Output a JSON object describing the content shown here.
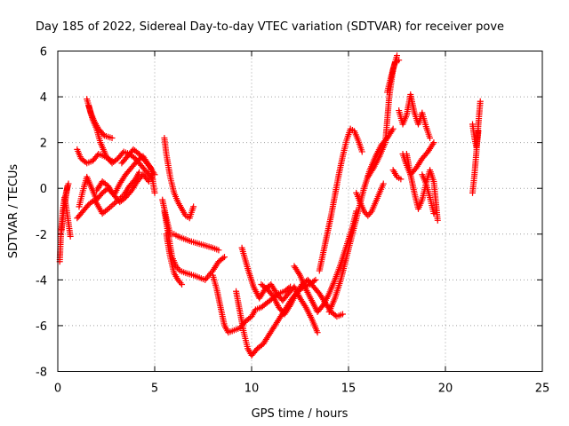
{
  "chart_data": {
    "type": "scatter",
    "title": "Day 185 of 2022, Sidereal Day-to-day VTEC variation (SDTVAR) for receiver pove",
    "xlabel": "GPS time / hours",
    "ylabel": "SDTVAR / TECUs",
    "xlim": [
      0,
      25
    ],
    "ylim": [
      -8,
      6
    ],
    "xticks": [
      0,
      5,
      10,
      15,
      20,
      25
    ],
    "yticks": [
      -8,
      -6,
      -4,
      -2,
      0,
      2,
      4,
      6
    ],
    "xtick_labels": [
      "0",
      "5",
      "10",
      "15",
      "20",
      "25"
    ],
    "ytick_labels": [
      "-8",
      "-6",
      "-4",
      "-2",
      "0",
      "2",
      "4",
      "6"
    ],
    "grid": true,
    "marker": "+",
    "color": "#ff0000",
    "series": [
      {
        "x": [
          0.1,
          0.15,
          0.25,
          0.35,
          0.45,
          0.55,
          0.65
        ],
        "y": [
          -3.2,
          -2.2,
          -1.0,
          -0.4,
          -0.9,
          -1.5,
          -2.1
        ]
      },
      {
        "x": [
          0.2,
          0.3,
          0.4,
          0.5
        ],
        "y": [
          -1.8,
          -1.0,
          -0.5,
          0.1
        ]
      },
      {
        "x": [
          0.35,
          0.45,
          0.55
        ],
        "y": [
          -0.5,
          -0.1,
          0.2
        ]
      },
      {
        "x": [
          1.0,
          1.2,
          1.5,
          1.8,
          2.1,
          2.4,
          2.6,
          2.8
        ],
        "y": [
          1.7,
          1.3,
          1.1,
          1.2,
          1.5,
          1.4,
          1.3,
          1.2
        ]
      },
      {
        "x": [
          1.0,
          1.3,
          1.6,
          1.9,
          2.1,
          2.3,
          2.6,
          3.0,
          3.4,
          3.7,
          4.0,
          4.2
        ],
        "y": [
          -1.3,
          -1.0,
          -0.7,
          -0.5,
          -0.8,
          -1.1,
          -0.9,
          -0.6,
          -0.3,
          0.1,
          0.4,
          0.7
        ]
      },
      {
        "x": [
          1.1,
          1.3,
          1.5,
          1.8,
          2.0,
          2.3,
          2.6,
          2.9,
          3.2,
          3.5,
          3.8,
          4.1,
          4.4,
          4.7
        ],
        "y": [
          -0.8,
          -0.1,
          0.5,
          -0.1,
          -0.5,
          -0.2,
          0.0,
          -0.3,
          -0.6,
          -0.4,
          -0.1,
          0.3,
          0.6,
          0.3
        ]
      },
      {
        "x": [
          1.5,
          1.7,
          1.9,
          2.1,
          2.4,
          2.8
        ],
        "y": [
          3.9,
          3.3,
          2.9,
          2.6,
          2.3,
          2.2
        ]
      },
      {
        "x": [
          1.6,
          1.8,
          2.0,
          2.2,
          2.5,
          2.8,
          3.1,
          3.4,
          3.7,
          4.0,
          4.3,
          4.6,
          4.9
        ],
        "y": [
          3.6,
          3.0,
          2.6,
          2.0,
          1.4,
          1.1,
          1.3,
          1.6,
          1.5,
          1.3,
          1.0,
          0.7,
          0.4
        ]
      },
      {
        "x": [
          2.0,
          2.3,
          2.6,
          2.9,
          3.2,
          3.5,
          3.8,
          4.1,
          4.4,
          4.7,
          5.0
        ],
        "y": [
          -0.1,
          0.3,
          0.1,
          -0.3,
          0.2,
          0.6,
          0.9,
          1.2,
          1.4,
          1.0,
          0.6
        ]
      },
      {
        "x": [
          3.3,
          3.6,
          3.9,
          4.2,
          4.5,
          4.8,
          5.0
        ],
        "y": [
          1.1,
          1.4,
          1.7,
          1.5,
          1.2,
          0.9,
          -0.2
        ]
      },
      {
        "x": [
          5.5,
          5.6,
          5.8,
          6.0,
          6.2,
          6.4,
          6.6,
          6.8,
          7.0
        ],
        "y": [
          2.2,
          1.5,
          0.5,
          -0.2,
          -0.6,
          -0.9,
          -1.2,
          -1.3,
          -0.8
        ]
      },
      {
        "x": [
          5.4,
          5.6,
          5.8,
          6.0,
          6.2,
          6.5,
          6.8,
          7.2,
          7.6,
          8.0,
          8.3
        ],
        "y": [
          -0.5,
          -1.3,
          -2.0,
          -2.0,
          -2.1,
          -2.2,
          -2.3,
          -2.4,
          -2.5,
          -2.6,
          -2.7
        ]
      },
      {
        "x": [
          5.5,
          5.7,
          5.9,
          6.1,
          6.3,
          6.6,
          7.0,
          7.3,
          7.6,
          8.0,
          8.3,
          8.6
        ],
        "y": [
          -1.0,
          -2.0,
          -3.0,
          -3.4,
          -3.6,
          -3.7,
          -3.8,
          -3.9,
          -4.0,
          -3.6,
          -3.2,
          -3.0
        ]
      },
      {
        "x": [
          5.6,
          5.8,
          6.0,
          6.2,
          6.4
        ],
        "y": [
          -2.0,
          -3.0,
          -3.7,
          -4.0,
          -4.2
        ]
      },
      {
        "x": [
          8.0,
          8.2,
          8.4,
          8.6,
          8.8,
          9.1,
          9.4,
          9.7,
          10.0,
          10.2,
          10.5,
          10.8,
          11.1,
          11.4,
          11.7,
          12.0
        ],
        "y": [
          -3.8,
          -4.4,
          -5.2,
          -6.0,
          -6.3,
          -6.2,
          -6.1,
          -5.8,
          -5.6,
          -5.3,
          -5.2,
          -5.0,
          -4.8,
          -4.6,
          -4.5,
          -4.3
        ]
      },
      {
        "x": [
          9.2,
          9.4,
          9.6,
          9.8,
          10.0,
          10.3,
          10.6,
          10.9,
          11.2,
          11.5,
          11.8,
          12.1,
          12.4,
          12.7,
          13.0,
          13.3
        ],
        "y": [
          -4.5,
          -5.4,
          -6.3,
          -7.0,
          -7.3,
          -7.0,
          -6.8,
          -6.4,
          -6.0,
          -5.6,
          -5.2,
          -4.8,
          -4.5,
          -4.3,
          -4.2,
          -4.0
        ]
      },
      {
        "x": [
          9.5,
          9.8,
          10.1,
          10.4,
          10.7,
          11.0,
          11.3,
          11.6,
          11.9,
          12.2,
          12.5,
          12.8,
          13.1,
          13.4
        ],
        "y": [
          -2.6,
          -3.5,
          -4.3,
          -4.8,
          -4.4,
          -4.2,
          -4.6,
          -4.9,
          -4.6,
          -4.3,
          -4.8,
          -5.2,
          -5.7,
          -6.3
        ]
      },
      {
        "x": [
          10.5,
          10.8,
          11.1,
          11.4,
          11.7,
          12.0,
          12.3,
          12.6,
          12.9,
          13.2,
          13.5,
          13.8,
          14.1,
          14.4,
          14.7
        ],
        "y": [
          -4.2,
          -4.4,
          -4.7,
          -5.2,
          -5.5,
          -5.1,
          -4.6,
          -4.2,
          -4.0,
          -4.3,
          -4.6,
          -5.0,
          -5.4,
          -5.6,
          -5.5
        ]
      },
      {
        "x": [
          12.2,
          12.5,
          12.8,
          13.1,
          13.4,
          13.7,
          14.0,
          14.3,
          14.6,
          14.9,
          15.2,
          15.4
        ],
        "y": [
          -3.4,
          -3.8,
          -4.4,
          -4.9,
          -5.4,
          -5.1,
          -4.6,
          -4.0,
          -3.3,
          -2.5,
          -1.7,
          -1.0
        ]
      },
      {
        "x": [
          13.5,
          13.7,
          13.9,
          14.1,
          14.3,
          14.5,
          14.7,
          14.9,
          15.1,
          15.3,
          15.5,
          15.7
        ],
        "y": [
          -3.6,
          -2.8,
          -2.0,
          -1.2,
          -0.3,
          0.6,
          1.4,
          2.1,
          2.6,
          2.5,
          2.1,
          1.6
        ]
      },
      {
        "x": [
          14.0,
          14.3,
          14.6,
          14.9,
          15.2,
          15.5,
          15.8,
          16.1,
          16.4,
          16.7,
          17.0,
          17.3
        ],
        "y": [
          -5.4,
          -4.8,
          -4.0,
          -3.0,
          -2.0,
          -1.0,
          0.0,
          0.8,
          1.4,
          1.9,
          2.2,
          2.6
        ]
      },
      {
        "x": [
          15.4,
          15.6,
          15.8,
          16.0,
          16.2,
          16.4,
          16.6,
          16.8
        ],
        "y": [
          -0.2,
          -0.6,
          -1.0,
          -1.2,
          -1.0,
          -0.6,
          -0.2,
          0.2
        ]
      },
      {
        "x": [
          16.0,
          16.3,
          16.6,
          16.9,
          17.1,
          17.3,
          17.5
        ],
        "y": [
          0.5,
          0.9,
          1.4,
          2.0,
          4.0,
          5.2,
          5.8
        ]
      },
      {
        "x": [
          17.0,
          17.2,
          17.4,
          17.6
        ],
        "y": [
          4.2,
          4.9,
          5.5,
          5.6
        ]
      },
      {
        "x": [
          17.3,
          17.5,
          17.7
        ],
        "y": [
          0.8,
          0.5,
          0.4
        ]
      },
      {
        "x": [
          17.6,
          17.8,
          18.0,
          18.2,
          18.4,
          18.6,
          18.8,
          19.0,
          19.2
        ],
        "y": [
          3.4,
          2.8,
          3.2,
          4.1,
          3.3,
          2.8,
          3.3,
          2.7,
          2.2
        ]
      },
      {
        "x": [
          17.8,
          18.0,
          18.2,
          18.5,
          18.8,
          19.1,
          19.4
        ],
        "y": [
          1.5,
          1.0,
          0.6,
          0.9,
          1.3,
          1.6,
          2.0
        ]
      },
      {
        "x": [
          18.0,
          18.2,
          18.4,
          18.6,
          18.8,
          19.0,
          19.2,
          19.4,
          19.6
        ],
        "y": [
          1.5,
          0.6,
          -0.2,
          -0.9,
          -0.5,
          0.2,
          0.8,
          0.3,
          -1.4
        ]
      },
      {
        "x": [
          18.8,
          19.0,
          19.2,
          19.4
        ],
        "y": [
          0.6,
          0.2,
          -0.4,
          -1.1
        ]
      },
      {
        "x": [
          21.4,
          21.5,
          21.6,
          21.7,
          21.8
        ],
        "y": [
          -0.2,
          0.6,
          1.6,
          2.8,
          3.8
        ]
      },
      {
        "x": [
          21.4,
          21.5,
          21.6,
          21.7
        ],
        "y": [
          2.8,
          2.2,
          1.8,
          2.5
        ]
      }
    ]
  }
}
